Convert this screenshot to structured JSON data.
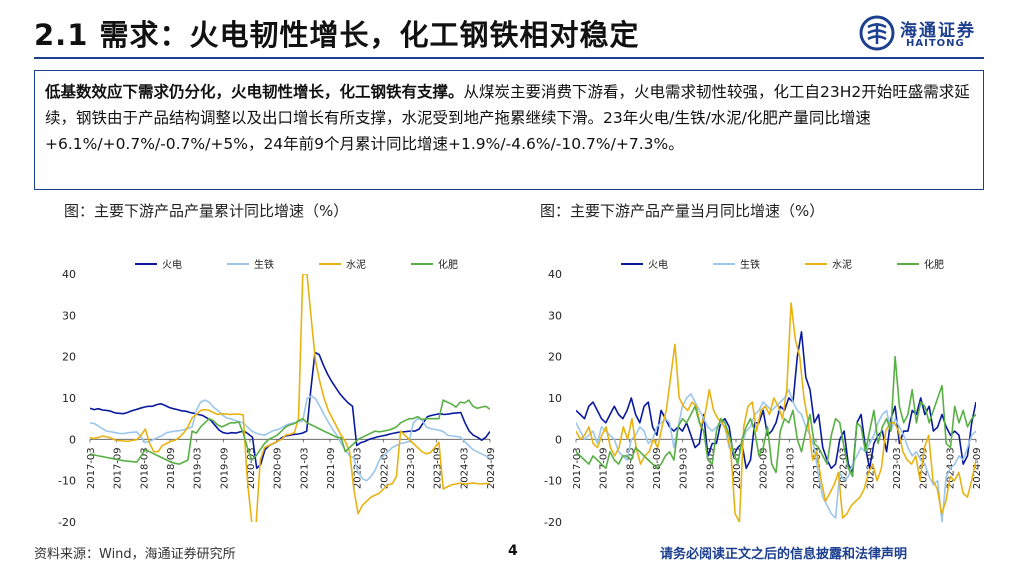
{
  "title": "2.1 需求：火电韧性增长，化工钢铁相对稳定",
  "logo": {
    "cn": "海通证券",
    "en": "HAITONG"
  },
  "summary": {
    "bold": "低基数效应下需求仍分化，火电韧性增长，化工钢铁有支撑。",
    "text": "从煤炭主要消费下游看，火电需求韧性较强，化工自23H2开始旺盛需求延续，钢铁由于产品结构调整以及出口增长有所支撑，水泥受到地产拖累继续下滑。23年火电/生铁/水泥/化肥产量同比增速+6.1%/+0.7%/-0.7%/+5%，24年前9个月累计同比增速+1.9%/-4.6%/-10.7%/+7.3%。"
  },
  "captions": {
    "left": "图：主要下游产品产量累计同比增速（%）",
    "right": "图：主要下游产品产量当月同比增速（%）"
  },
  "footer": {
    "source": "资料来源：Wind，海通证券研究所",
    "page": "4",
    "disclaimer": "请务必阅读正文之后的信息披露和法律声明"
  },
  "chart_data": [
    {
      "type": "line",
      "title": "主要下游产品产量累计同比增速（%）",
      "ylim": [
        -20,
        40
      ],
      "yticks": [
        -20,
        -10,
        0,
        10,
        20,
        30,
        40
      ],
      "xticks": [
        "2017-03",
        "2017-09",
        "2018-03",
        "2018-09",
        "2019-03",
        "2019-09",
        "2020-03",
        "2020-09",
        "2021-03",
        "2021-09",
        "2022-03",
        "2022-09",
        "2023-03",
        "2023-09",
        "2024-03",
        "2024-09"
      ],
      "x_start": "2017-03",
      "x_end": "2024-09",
      "legend_position": "top",
      "series": [
        {
          "name": "火电",
          "color": "#0a1a9e",
          "values": [
            7.5,
            7.2,
            7.4,
            7.1,
            7.0,
            6.8,
            6.4,
            6.3,
            6.2,
            6.5,
            6.9,
            7.2,
            7.5,
            7.8,
            8.0,
            8.0,
            8.4,
            8.6,
            8.2,
            7.7,
            7.4,
            7.2,
            6.9,
            6.8,
            6.5,
            6.3,
            6.0,
            5.8,
            5.2,
            4.6,
            3.4,
            2.2,
            1.6,
            1.4,
            1.6,
            1.5,
            1.8,
            2.0,
            1.3,
            0.5,
            -7.0,
            -6.0,
            -2.5,
            -1.5,
            -1.0,
            -0.5,
            0.4,
            0.8,
            1.0,
            1.2,
            1.3,
            1.5,
            2.0,
            12.0,
            21.0,
            20.5,
            18.0,
            15.8,
            14.0,
            12.5,
            11.0,
            9.8,
            8.8,
            8.0,
            -1.5,
            -0.8,
            -0.5,
            0.0,
            0.3,
            0.6,
            0.8,
            1.0,
            1.3,
            1.5,
            1.7,
            1.8,
            1.9,
            2.0,
            2.0,
            2.5,
            4.0,
            5.5,
            5.8,
            6.0,
            6.2,
            6.0,
            6.1,
            6.3,
            6.4,
            6.5,
            4.0,
            2.0,
            1.0,
            0.5,
            -0.2,
            0.5,
            1.9
          ]
        },
        {
          "name": "生铁",
          "color": "#9cc6ec",
          "values": [
            4.0,
            3.8,
            3.2,
            2.5,
            2.0,
            1.8,
            1.6,
            1.4,
            1.4,
            1.6,
            1.7,
            1.8,
            0.5,
            -0.8,
            -0.5,
            0.0,
            0.5,
            0.9,
            1.6,
            1.8,
            2.0,
            2.1,
            2.3,
            2.6,
            3.0,
            7.0,
            9.0,
            9.5,
            9.0,
            7.8,
            7.0,
            6.0,
            5.2,
            5.0,
            4.6,
            4.3,
            4.0,
            3.0,
            2.0,
            1.5,
            1.2,
            1.0,
            1.5,
            2.1,
            2.3,
            2.8,
            3.4,
            3.8,
            4.0,
            4.2,
            4.5,
            9.8,
            10.5,
            9.8,
            8.0,
            6.0,
            4.2,
            2.4,
            1.0,
            -1.0,
            -2.5,
            -4.0,
            -4.5,
            -8.0,
            -9.5,
            -10.0,
            -9.0,
            -7.5,
            -5.0,
            -4.0,
            -3.0,
            -2.0,
            -1.5,
            -1.0,
            -0.8,
            -0.5,
            4.0,
            5.0,
            4.8,
            3.0,
            2.6,
            2.4,
            2.2,
            1.9,
            1.0,
            0.8,
            0.7,
            0.6,
            -0.5,
            -1.5,
            -2.5,
            -3.0,
            -3.5,
            -4.0,
            -4.6
          ]
        },
        {
          "name": "水泥",
          "color": "#e8b312",
          "values": [
            0.4,
            0.2,
            0.5,
            0.8,
            0.6,
            0.3,
            -0.2,
            -0.3,
            -0.4,
            -0.5,
            -0.2,
            -0.1,
            1.0,
            2.5,
            -1.0,
            -3.0,
            -3.0,
            -1.5,
            -1.0,
            -0.5,
            -0.2,
            0.5,
            1.5,
            3.0,
            5.2,
            6.0,
            7.0,
            7.2,
            7.0,
            6.5,
            6.0,
            6.2,
            6.1,
            6.0,
            6.1,
            6.1,
            5.9,
            -10.0,
            -20.0,
            -21.0,
            -5.0,
            -2.0,
            -1.5,
            -1.0,
            -0.5,
            0.0,
            1.0,
            1.2,
            1.6,
            5.0,
            40.0,
            40.0,
            29.0,
            19.0,
            14.0,
            10.0,
            7.0,
            5.0,
            3.0,
            1.0,
            -0.5,
            -3.0,
            -12.0,
            -18.0,
            -16.0,
            -15.0,
            -14.0,
            -13.5,
            -13.0,
            -12.0,
            -11.0,
            -10.8,
            -9.0,
            2.0,
            1.0,
            0.0,
            -1.0,
            -2.0,
            -3.0,
            -3.5,
            -3.2,
            -2.0,
            -0.7,
            -12.0,
            -11.5,
            -11.0,
            -10.8,
            -10.6,
            -10.8,
            -10.7,
            -10.6,
            -10.7,
            -10.8,
            -10.7,
            -10.7
          ]
        },
        {
          "name": "化肥",
          "color": "#58b044",
          "values": [
            -3.5,
            -3.8,
            -4.0,
            -4.2,
            -4.4,
            -4.6,
            -4.8,
            -5.0,
            -5.2,
            -5.3,
            -5.4,
            -5.5,
            -4.0,
            -2.5,
            -3.0,
            -3.5,
            -4.0,
            -4.5,
            -5.0,
            -5.5,
            -5.8,
            -6.0,
            -5.5,
            -5.0,
            2.0,
            1.5,
            3.0,
            4.0,
            5.0,
            4.5,
            3.5,
            3.0,
            3.5,
            4.0,
            4.0,
            4.2,
            1.5,
            -2.0,
            -5.0,
            -4.0,
            -2.5,
            -1.0,
            0.0,
            0.5,
            1.0,
            2.0,
            3.0,
            3.5,
            3.8,
            4.5,
            5.0,
            4.0,
            3.5,
            3.0,
            2.5,
            2.0,
            1.5,
            1.0,
            0.5,
            0.4,
            -3.0,
            -2.0,
            -1.0,
            0.0,
            0.5,
            1.0,
            1.5,
            2.0,
            1.8,
            2.0,
            2.2,
            2.5,
            3.0,
            4.0,
            4.5,
            5.0,
            5.0,
            5.5,
            4.8,
            5.0,
            5.0,
            5.0,
            5.0,
            9.5,
            9.0,
            8.5,
            7.8,
            9.0,
            8.8,
            9.5,
            8.0,
            7.5,
            7.8,
            8.0,
            7.3
          ]
        }
      ]
    },
    {
      "type": "line",
      "title": "主要下游产品产量当月同比增速（%）",
      "ylim": [
        -20,
        40
      ],
      "yticks": [
        -20,
        -10,
        0,
        10,
        20,
        30,
        40
      ],
      "xticks": [
        "2017-03",
        "2017-09",
        "2018-03",
        "2018-09",
        "2019-03",
        "2019-09",
        "2020-03",
        "2020-09",
        "2021-03",
        "2021-09",
        "2022-03",
        "2022-09",
        "2023-03",
        "2023-09",
        "2024-03",
        "2024-09"
      ],
      "x_start": "2017-03",
      "x_end": "2024-09",
      "legend_position": "top",
      "series": [
        {
          "name": "火电",
          "color": "#0a1a9e",
          "values": [
            7,
            6,
            5,
            8,
            9,
            7,
            5,
            4,
            6,
            8,
            6,
            5,
            7,
            10,
            6,
            4,
            8,
            9,
            3,
            1,
            7,
            5,
            3,
            2,
            3,
            2,
            4,
            1,
            -2,
            -1,
            6,
            -4,
            -1,
            -1,
            4,
            5,
            3,
            -4,
            -2,
            -1,
            -7,
            -5,
            4,
            4,
            7,
            1,
            2,
            4,
            8,
            7,
            10,
            9,
            20,
            26,
            15,
            12,
            4,
            6,
            -2,
            -5,
            -7,
            -6,
            0,
            2,
            -6,
            -8,
            4,
            6,
            -2,
            -7,
            -1,
            1,
            2,
            -3,
            5,
            8,
            -1,
            2,
            2,
            7,
            6,
            10,
            6,
            8,
            2,
            3,
            6,
            3,
            1,
            2,
            1,
            -6,
            -4,
            4,
            9
          ]
        },
        {
          "name": "生铁",
          "color": "#9cc6ec",
          "values": [
            4,
            2,
            0,
            1,
            2,
            -1,
            3,
            2,
            1,
            0,
            -3,
            -4,
            -5,
            0,
            1,
            3,
            2,
            -1,
            0,
            3,
            4,
            5,
            4,
            -2,
            3,
            8,
            10,
            11,
            9,
            7,
            5,
            3,
            2,
            3,
            4,
            3,
            -2,
            -3,
            -6,
            -1,
            2,
            3,
            6,
            7,
            9,
            8,
            7,
            8,
            9,
            10,
            12,
            9,
            7,
            6,
            3,
            1,
            -2,
            -9,
            -14,
            -16,
            -18,
            -19,
            -8,
            -10,
            -9,
            -6,
            -4,
            -2,
            -3,
            -1,
            1,
            4,
            6,
            7,
            2,
            5,
            3,
            1,
            -2,
            -4,
            -3,
            -5,
            -6,
            -9,
            -11,
            -10,
            -20,
            -9,
            -7,
            -6,
            -4,
            -5,
            -2,
            1,
            2
          ]
        },
        {
          "name": "水泥",
          "color": "#e8b312",
          "values": [
            2,
            0,
            1,
            3,
            -1,
            -2,
            1,
            3,
            -2,
            -4,
            -2,
            3,
            0,
            5,
            -2,
            -6,
            -4,
            -3,
            0,
            -2,
            3,
            7,
            15,
            23,
            10,
            8,
            7,
            9,
            8,
            3,
            6,
            12,
            7,
            5,
            4,
            2,
            -3,
            -18,
            -20,
            3,
            8,
            9,
            2,
            7,
            8,
            6,
            10,
            8,
            5,
            12,
            33,
            24,
            20,
            10,
            4,
            -5,
            -3,
            -10,
            -15,
            -13,
            -11,
            -8,
            -19,
            -18,
            -16,
            -15,
            -14,
            -12,
            -8,
            -6,
            -10,
            -7,
            2,
            4,
            4,
            2,
            -3,
            -5,
            -6,
            -4,
            -10,
            -2,
            1,
            -10,
            -12,
            -18,
            -15,
            -9,
            -10,
            -8,
            -13,
            -14,
            -10,
            -5
          ]
        },
        {
          "name": "化肥",
          "color": "#58b044",
          "values": [
            -3,
            -4,
            -5,
            -6,
            -4,
            -5,
            -6,
            -7,
            -3,
            -5,
            -6,
            -4,
            -4,
            -5,
            -2,
            -3,
            -4,
            -5,
            -6,
            -7,
            -6,
            -4,
            -3,
            -5,
            3,
            5,
            4,
            6,
            8,
            4,
            2,
            -5,
            -6,
            2,
            5,
            4,
            1,
            -3,
            -6,
            0,
            3,
            5,
            2,
            -4,
            -2,
            3,
            -6,
            -8,
            2,
            5,
            4,
            7,
            0,
            -3,
            2,
            6,
            -1,
            -2,
            -4,
            -6,
            1,
            5,
            4,
            -2,
            -7,
            -9,
            4,
            3,
            -3,
            2,
            7,
            -1,
            3,
            5,
            2,
            20,
            8,
            4,
            6,
            12,
            4,
            9,
            8,
            4,
            7,
            10,
            13,
            -1,
            -2,
            8,
            4,
            7,
            3,
            5,
            6
          ]
        }
      ]
    }
  ]
}
